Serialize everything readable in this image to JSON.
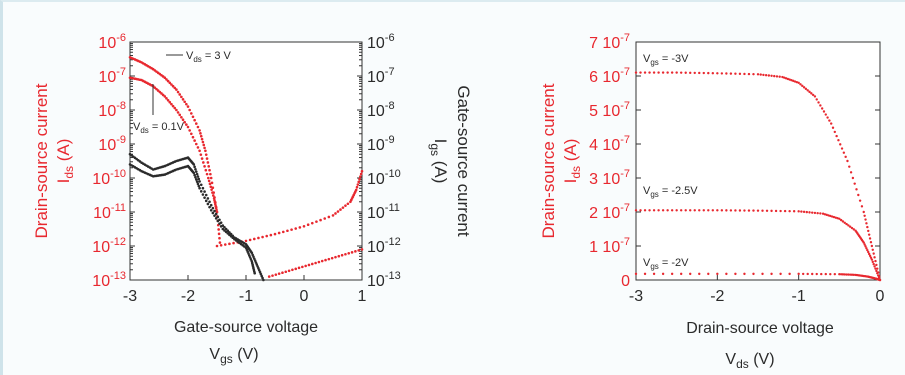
{
  "chart_data": [
    {
      "type": "scatter",
      "x_label": "Gate-source voltage",
      "x_symbol": {
        "base": "V",
        "sub": "gs",
        "unit": "(V)"
      },
      "left_title": "Drain-source current",
      "left_symbol": {
        "base": "I",
        "sub": "ds",
        "unit": "(A)"
      },
      "right_title": "Gate-source current",
      "right_symbol": {
        "base": "I",
        "sub": "gs",
        "unit": "(A)"
      },
      "x_ticks": [
        -3,
        -2,
        -1,
        0,
        1
      ],
      "xlim": [
        -3,
        1
      ],
      "y_scale": "log",
      "ylim_exp": [
        -13,
        -6
      ],
      "y_tick_exponents": [
        -6,
        -7,
        -8,
        -9,
        -10,
        -11,
        -12,
        -13
      ],
      "colors": {
        "drain": "#e8282f",
        "gate": "#2b2b2b"
      },
      "annotations": [
        {
          "base": "V",
          "sub": "ds",
          "text": " = 3 V"
        },
        {
          "base": "V",
          "sub": "ds",
          "text": " = 0.1V"
        }
      ],
      "series": [
        {
          "color": "#e8282f",
          "x": [
            -3.0,
            -2.8,
            -2.6,
            -2.4,
            -2.2,
            -2.0,
            -1.8,
            -1.7,
            -1.6,
            -1.5,
            -1.45
          ],
          "y_exp": [
            -6.45,
            -6.6,
            -6.8,
            -7.05,
            -7.4,
            -7.9,
            -8.6,
            -9.2,
            -10.0,
            -11.0,
            -11.9
          ]
        },
        {
          "color": "#e8282f",
          "x": [
            -1.5,
            -1.0,
            -0.5,
            0.0,
            0.5,
            0.8,
            0.9,
            1.0
          ],
          "y_exp": [
            -12.0,
            -11.85,
            -11.65,
            -11.42,
            -11.1,
            -10.7,
            -10.35,
            -9.8
          ]
        },
        {
          "color": "#e8282f",
          "x": [
            -3.0,
            -2.8,
            -2.6,
            -2.4,
            -2.2,
            -2.0,
            -1.8,
            -1.65,
            -1.55,
            -1.5
          ],
          "y_exp": [
            -7.05,
            -7.12,
            -7.3,
            -7.6,
            -8.0,
            -8.5,
            -9.2,
            -10.0,
            -10.6,
            -11.0
          ]
        },
        {
          "color": "#e8282f",
          "x": [
            -0.6,
            -0.2,
            0.2,
            0.6,
            1.0
          ],
          "y_exp": [
            -12.9,
            -12.7,
            -12.5,
            -12.3,
            -12.1
          ]
        },
        {
          "color": "#2b2b2b",
          "x": [
            -3.0,
            -2.8,
            -2.6,
            -2.4,
            -2.2,
            -2.0,
            -1.9,
            -1.8,
            -1.6,
            -1.4,
            -1.2,
            -1.0,
            -0.9,
            -0.8,
            -0.7
          ],
          "y_exp": [
            -9.3,
            -9.55,
            -9.75,
            -9.65,
            -9.5,
            -9.4,
            -9.6,
            -10.1,
            -10.8,
            -11.4,
            -11.75,
            -11.95,
            -12.2,
            -12.6,
            -13.0
          ]
        },
        {
          "color": "#2b2b2b",
          "x": [
            -3.0,
            -2.8,
            -2.6,
            -2.4,
            -2.2,
            -2.0,
            -1.9,
            -1.8,
            -1.6,
            -1.4,
            -1.2,
            -1.0,
            -0.9,
            -0.85
          ],
          "y_exp": [
            -9.6,
            -9.8,
            -9.95,
            -9.9,
            -9.75,
            -9.65,
            -9.85,
            -10.3,
            -10.95,
            -11.5,
            -11.8,
            -12.05,
            -12.45,
            -12.8
          ]
        }
      ]
    },
    {
      "type": "scatter",
      "x_label": "Drain-source voltage",
      "x_symbol": {
        "base": "V",
        "sub": "ds",
        "unit": "(V)"
      },
      "left_title": "Drain-source current",
      "left_symbol": {
        "base": "I",
        "sub": "ds",
        "unit": "(A)"
      },
      "x_ticks": [
        -3,
        -2,
        -1,
        0
      ],
      "xlim": [
        -3,
        0
      ],
      "ylim_mantissa": [
        0,
        7
      ],
      "y_ticks": [
        {
          "m": 7,
          "label": "7",
          "exp": "-7"
        },
        {
          "m": 6,
          "label": "6",
          "exp": "-7"
        },
        {
          "m": 5,
          "label": "5",
          "exp": "-7"
        },
        {
          "m": 4,
          "label": "4",
          "exp": "-7"
        },
        {
          "m": 3,
          "label": "3",
          "exp": "-7"
        },
        {
          "m": 2,
          "label": "2",
          "exp": "-7"
        },
        {
          "m": 1,
          "label": "1",
          "exp": "-7"
        },
        {
          "m": 0,
          "label": "0",
          "exp": ""
        }
      ],
      "tick_base": "10",
      "annotations": [
        {
          "base": "V",
          "sub": "gs",
          "text": " = -3V"
        },
        {
          "base": "V",
          "sub": "gs",
          "text": " = -2.5V"
        },
        {
          "base": "V",
          "sub": "gs",
          "text": " = -2V"
        }
      ],
      "series": [
        {
          "color": "#e8282f",
          "x": [
            -3.0,
            -2.5,
            -2.0,
            -1.5,
            -1.2,
            -1.0,
            -0.8,
            -0.6,
            -0.4,
            -0.2,
            -0.1,
            0.0
          ],
          "y": [
            6.1e-07,
            6.1e-07,
            6.08e-07,
            6.05e-07,
            5.97e-07,
            5.8e-07,
            5.4e-07,
            4.6e-07,
            3.5e-07,
            2e-07,
            1e-07,
            0.0
          ]
        },
        {
          "color": "#e8282f",
          "x": [
            -3.0,
            -2.5,
            -2.0,
            -1.5,
            -1.0,
            -0.7,
            -0.5,
            -0.3,
            -0.2,
            -0.1,
            0.0
          ],
          "y": [
            2.05e-07,
            2.05e-07,
            2.05e-07,
            2.04e-07,
            2.02e-07,
            1.95e-07,
            1.8e-07,
            1.45e-07,
            1.1e-07,
            6e-08,
            0.0
          ]
        },
        {
          "color": "#e8282f",
          "x": [
            -3.0,
            -2.0,
            -1.0,
            -0.5,
            -0.3,
            -0.15,
            -0.05,
            0.0
          ],
          "y": [
            1.8e-08,
            1.8e-08,
            1.8e-08,
            1.7e-08,
            1.5e-08,
            1e-08,
            4e-09,
            0.0
          ]
        }
      ]
    }
  ]
}
